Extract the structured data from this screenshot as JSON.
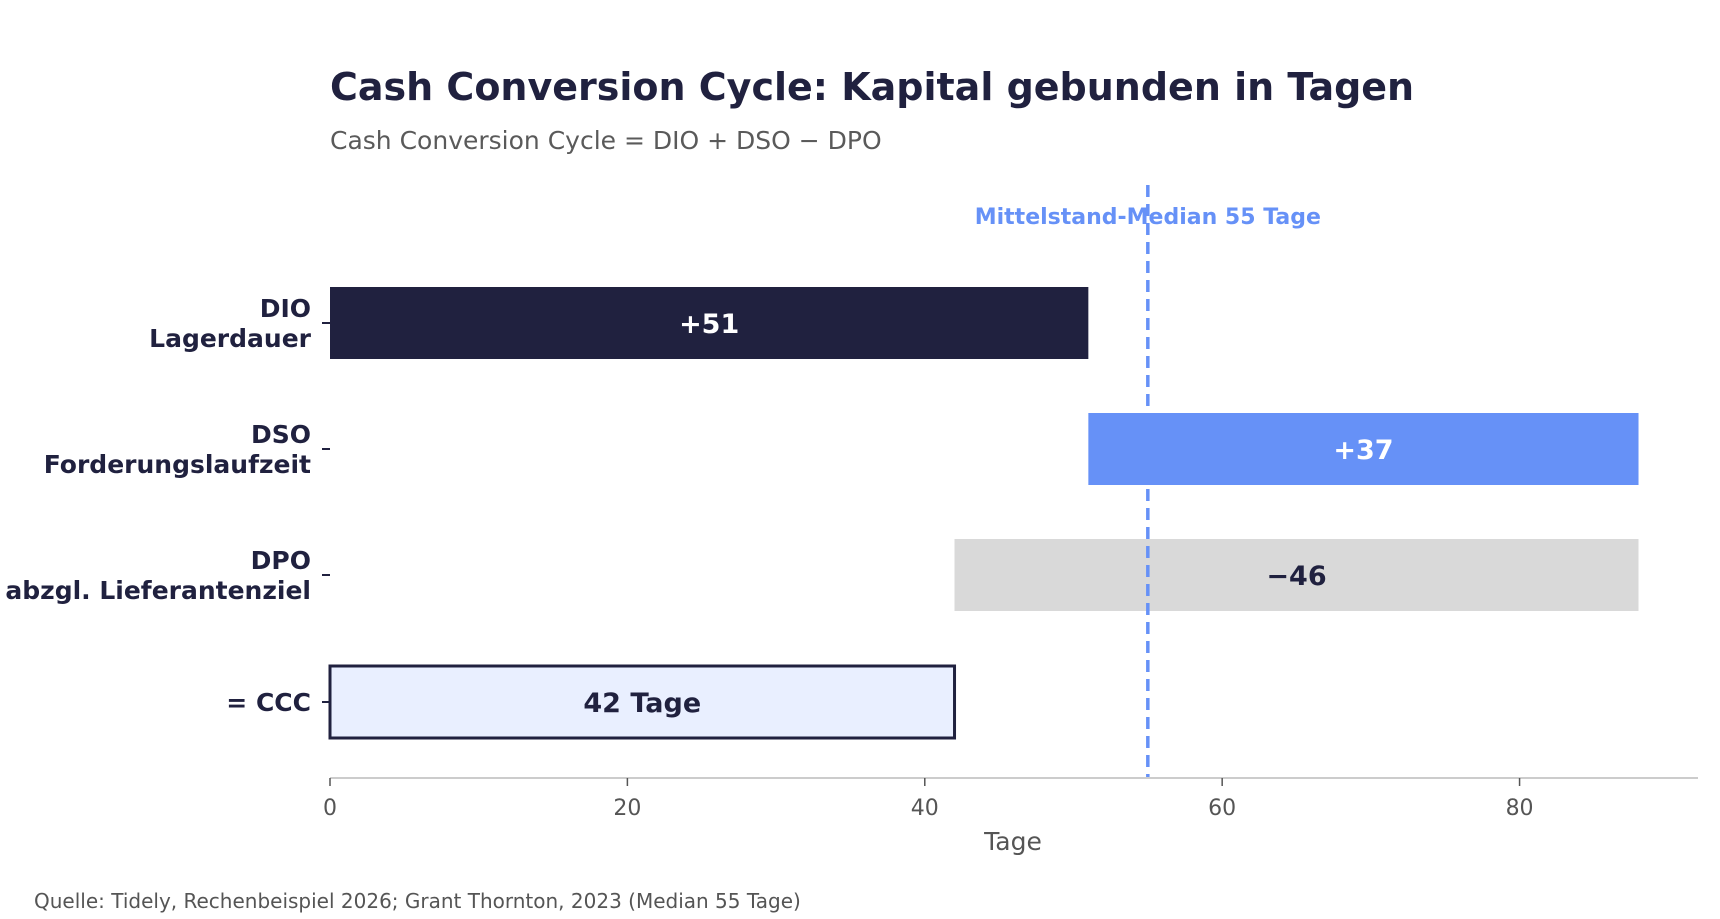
{
  "chart_data": {
    "type": "bar",
    "title": "Cash Conversion Cycle: Kapital gebunden in Tagen",
    "subtitle": "Cash Conversion Cycle = DIO + DSO − DPO",
    "xlabel": "Tage",
    "ylabel": "",
    "xlim": [
      0,
      92
    ],
    "xticks": [
      "0",
      "20",
      "40",
      "60",
      "80"
    ],
    "grid": false,
    "categories": [
      [
        "DIO",
        "Lagerdauer"
      ],
      [
        "DSO",
        "Forderungslaufzeit"
      ],
      [
        "DPO",
        "abzgl. Lieferantenziel"
      ],
      [
        "= CCC"
      ]
    ],
    "bars": [
      {
        "start": 0,
        "end": 51,
        "label": "+51",
        "color": "#20213f",
        "label_color": "#ffffff"
      },
      {
        "start": 51,
        "end": 88,
        "label": "+37",
        "color": "#6691f7",
        "label_color": "#ffffff"
      },
      {
        "start": 42,
        "end": 88,
        "label": "−46",
        "color": "#d9d9d9",
        "label_color": "#20213f"
      },
      {
        "start": 0,
        "end": 42,
        "label": "42 Tage",
        "color": "#e9efff",
        "label_color": "#20213f",
        "outline": "#20213f"
      }
    ],
    "reference_line": {
      "value": 55,
      "label": "Mittelstand-Median 55 Tage",
      "color": "#6691f7"
    },
    "source": "Quelle: Tidely, Rechenbeispiel 2026; Grant Thornton, 2023 (Median 55 Tage)"
  }
}
